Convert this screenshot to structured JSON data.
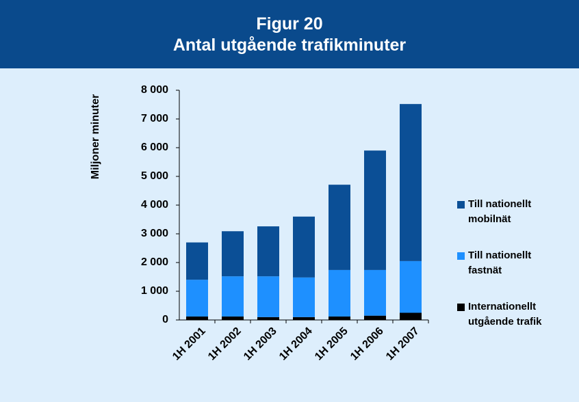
{
  "chart_data": {
    "type": "stacked_bar",
    "title": "Figur 20",
    "subtitle": "Antal utgående trafikminuter",
    "y_label": "Miljoner minuter",
    "categories": [
      "1H 2001",
      "1H 2002",
      "1H 2003",
      "1H 2004",
      "1H 2005",
      "1H 2006",
      "1H 2007"
    ],
    "series": [
      {
        "name": "Internationellt utgående trafik",
        "color": "#000000",
        "values": [
          120,
          120,
          100,
          100,
          120,
          150,
          250
        ]
      },
      {
        "name": "Till nationellt fastnät",
        "color": "#1e90ff",
        "values": [
          1280,
          1400,
          1420,
          1380,
          1620,
          1590,
          1800
        ]
      },
      {
        "name": "Till nationellt mobilnät",
        "color": "#0b4f96",
        "values": [
          1300,
          1570,
          1740,
          2120,
          2970,
          4160,
          5470
        ]
      }
    ],
    "ylim": [
      0,
      8000
    ],
    "yticks": [
      0,
      {
        "value": 1000,
        "label": "1 000"
      },
      {
        "value": 2000,
        "label": "2 000"
      },
      {
        "value": 3000,
        "label": "3 000"
      },
      {
        "value": 4000,
        "label": "4 000"
      },
      {
        "value": 5000,
        "label": "5 000"
      },
      {
        "value": 6000,
        "label": "6 000"
      },
      {
        "value": 7000,
        "label": "7 000"
      },
      {
        "value": 8000,
        "label": "8 000"
      }
    ],
    "legend": "right"
  }
}
